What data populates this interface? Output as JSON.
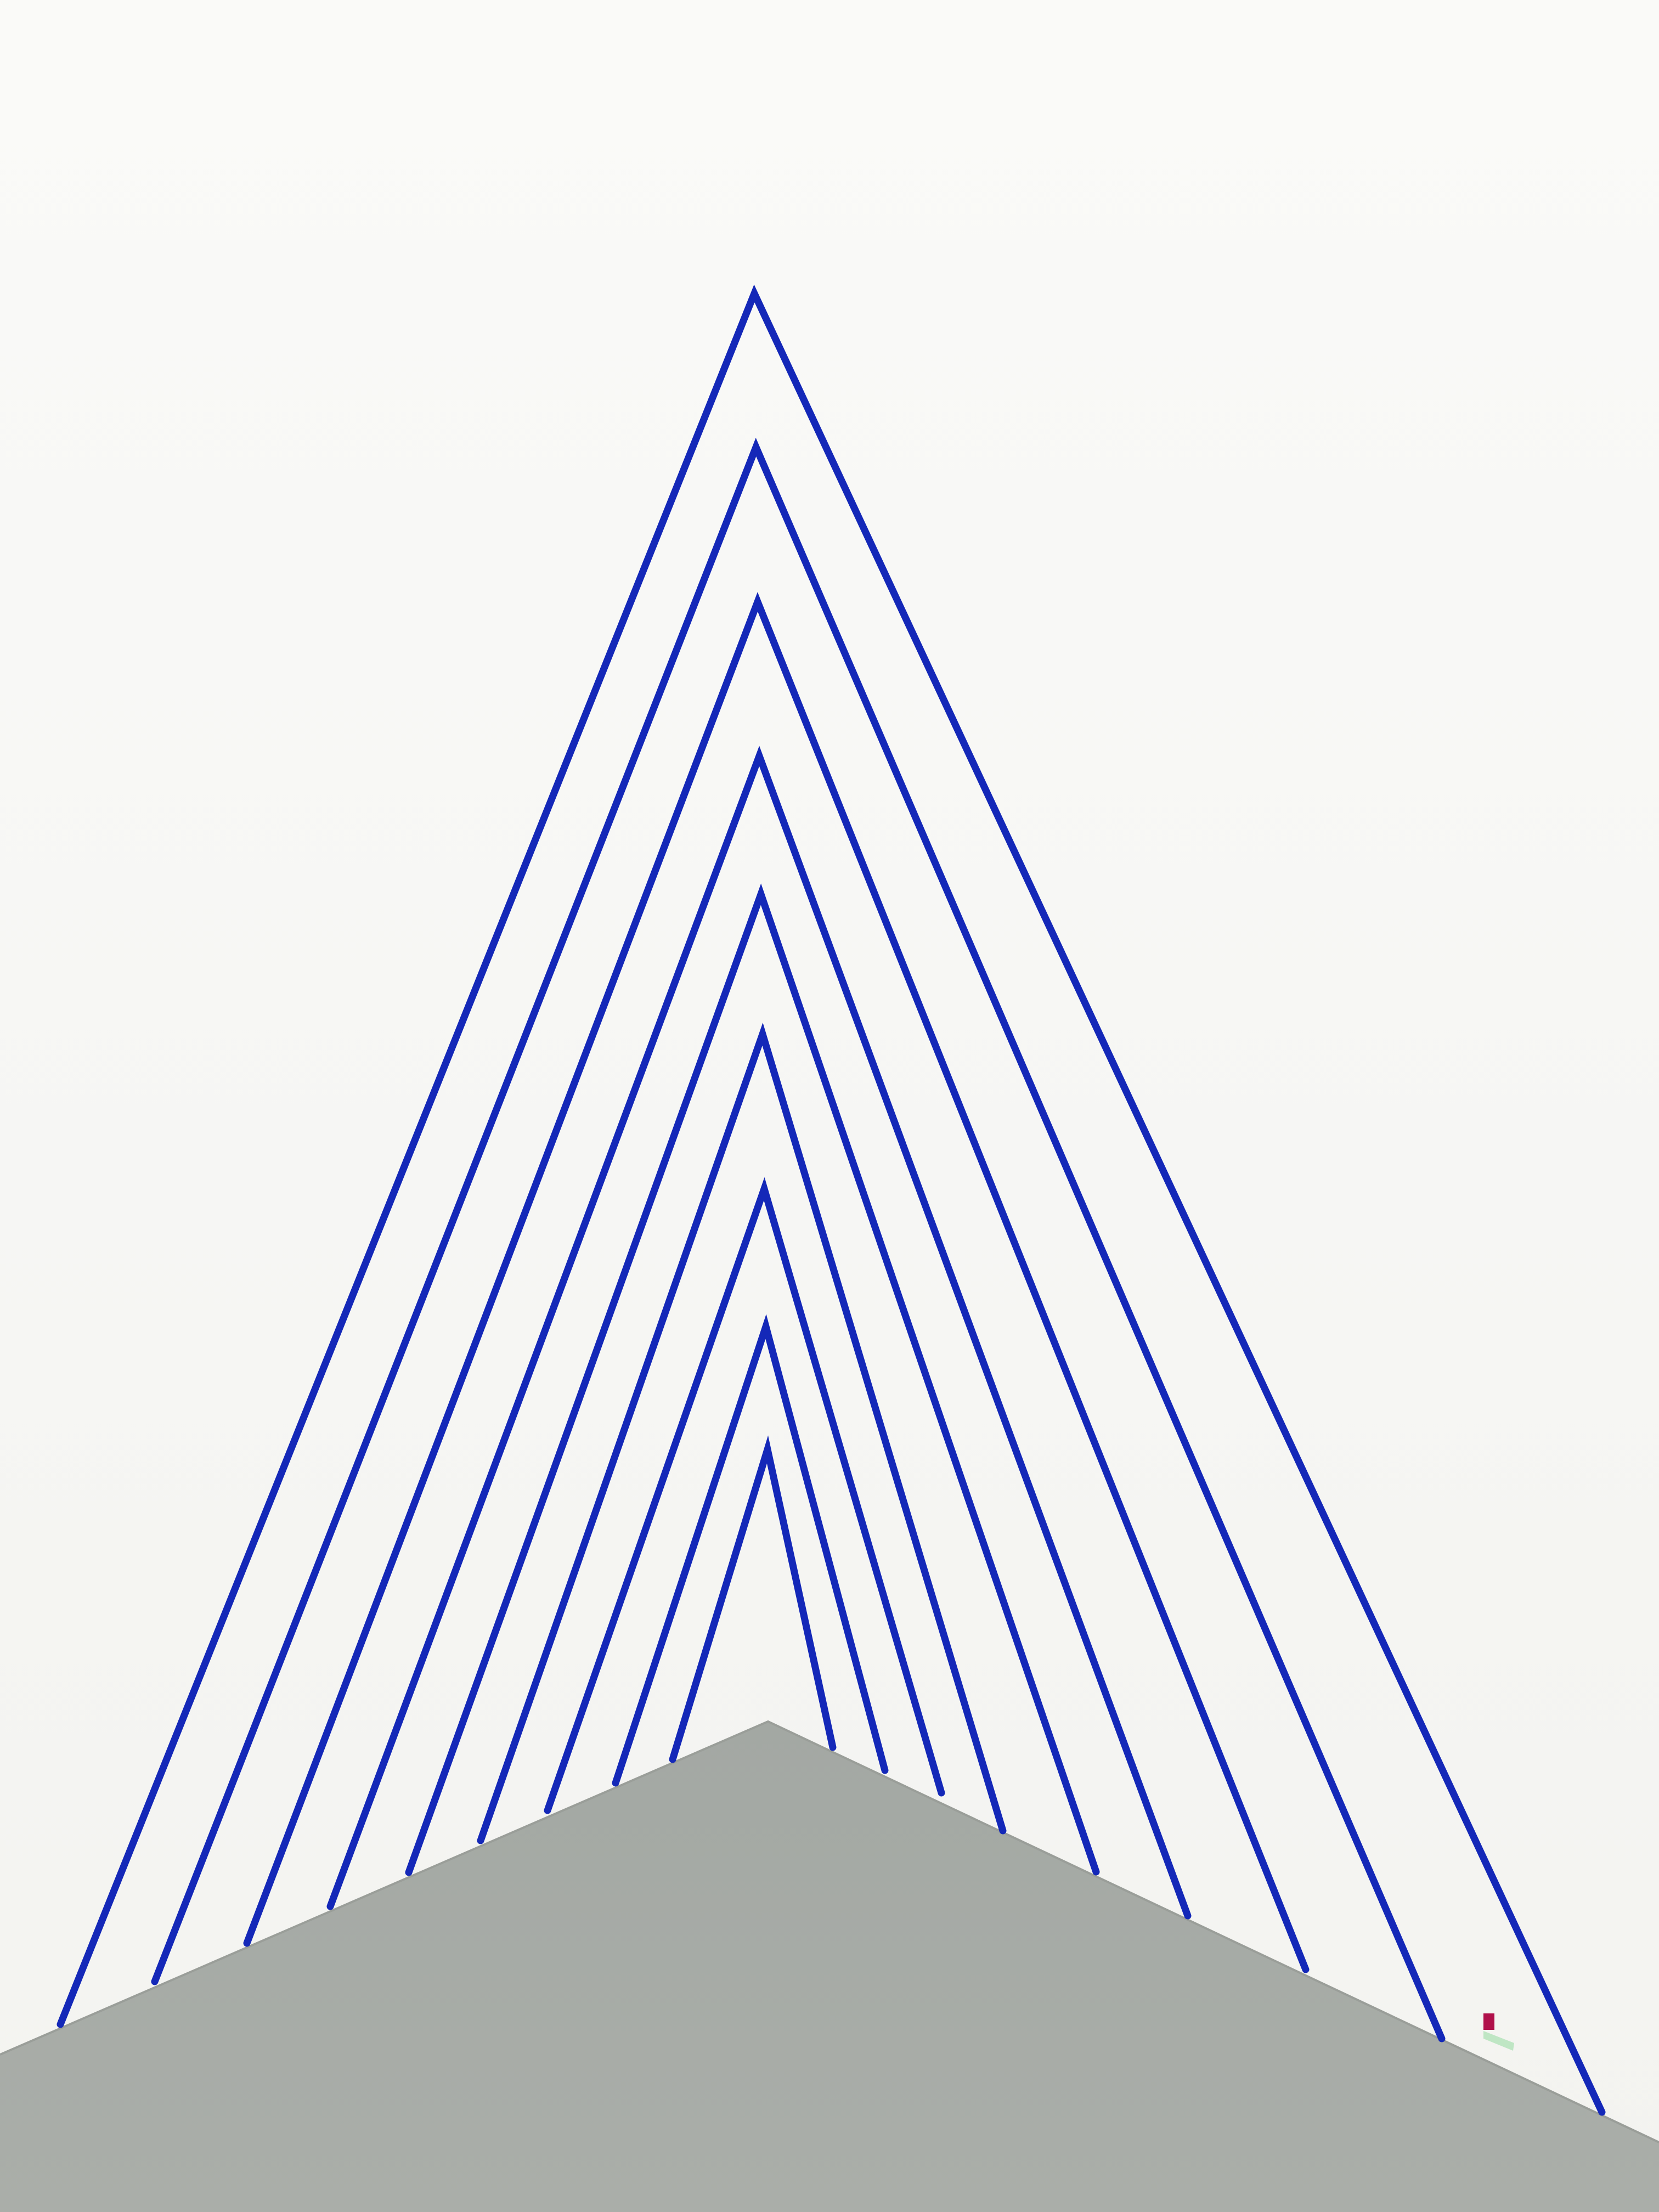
{
  "colors": {
    "wall": "#f9f9f7",
    "wall_shadow": "#efefec",
    "floor": "#a6aaa6",
    "floor_edge": "#9a9e99",
    "tape": "#1428b8",
    "marker_red": "#b0104a",
    "marker_green": "#bfe6c4"
  },
  "lines": [
    {
      "peak": [
        1375,
        535
      ],
      "left_base": [
        110,
        3690
      ],
      "right_base": [
        2920,
        3850
      ]
    },
    {
      "peak": [
        1378,
        815
      ],
      "left_base": [
        282,
        3612
      ],
      "right_base": [
        2628,
        3716
      ]
    },
    {
      "peak": [
        1381,
        1097
      ],
      "left_base": [
        450,
        3542
      ],
      "right_base": [
        2380,
        3590
      ]
    },
    {
      "peak": [
        1384,
        1378
      ],
      "left_base": [
        602,
        3475
      ],
      "right_base": [
        2165,
        3492
      ]
    },
    {
      "peak": [
        1387,
        1630
      ],
      "left_base": [
        745,
        3413
      ],
      "right_base": [
        1998,
        3412
      ]
    },
    {
      "peak": [
        1390,
        1885
      ],
      "left_base": [
        876,
        3355
      ],
      "right_base": [
        1828,
        3337
      ]
    },
    {
      "peak": [
        1393,
        2167
      ],
      "left_base": [
        998,
        3300
      ],
      "right_base": [
        1716,
        3268
      ]
    },
    {
      "peak": [
        1396,
        2418
      ],
      "left_base": [
        1122,
        3250
      ],
      "right_base": [
        1613,
        3227
      ]
    },
    {
      "peak": [
        1399,
        2642
      ],
      "left_base": [
        1226,
        3207
      ],
      "right_base": [
        1518,
        3185
      ]
    }
  ]
}
